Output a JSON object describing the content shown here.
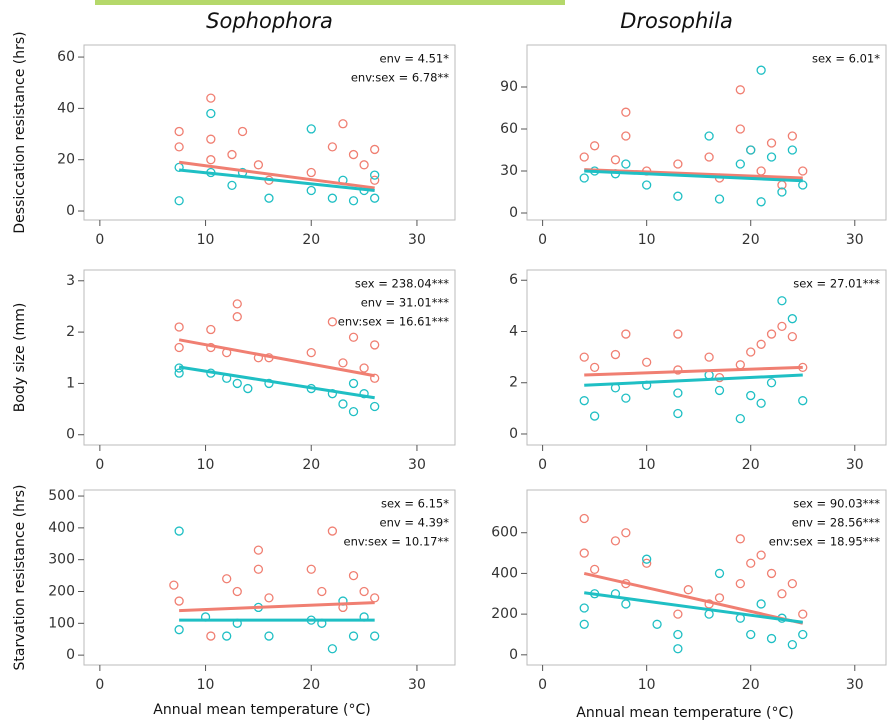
{
  "chart_data": [
    {
      "type": "scatter",
      "title": "Sophophora",
      "ylabel": "Dessiccation resistance (hrs)",
      "annotations": [
        "env = 4.51*",
        "env:sex = 6.78**"
      ],
      "xlim": [
        -1.5,
        33.6
      ],
      "xticks": [
        0,
        10,
        20,
        30
      ],
      "ylim": [
        -3.5,
        64.7
      ],
      "yticks": [
        0,
        20,
        40,
        60
      ],
      "series": [
        {
          "color": "#f07f72",
          "x": [
            7.5,
            7.5,
            10.5,
            10.5,
            10.5,
            12.5,
            13.5,
            15,
            16,
            20,
            22,
            23,
            24,
            25,
            26,
            26
          ],
          "y": [
            25,
            31,
            44,
            28,
            20,
            22,
            31,
            18,
            12,
            15,
            25,
            34,
            22,
            18,
            24,
            12
          ],
          "fit_x": [
            7.5,
            26
          ],
          "fit_y": [
            19,
            9
          ]
        },
        {
          "color": "#1fbfc4",
          "x": [
            7.5,
            7.5,
            10.5,
            10.5,
            12.5,
            13.5,
            16,
            20,
            20,
            22,
            23,
            24,
            25,
            26,
            26
          ],
          "y": [
            4,
            17,
            38,
            15,
            10,
            15,
            5,
            32,
            8,
            5,
            12,
            4,
            8,
            14,
            5
          ],
          "fit_x": [
            7.5,
            26
          ],
          "fit_y": [
            16,
            8
          ]
        }
      ]
    },
    {
      "type": "scatter",
      "title": "Drosophila",
      "annotations": [
        "sex = 6.01*"
      ],
      "xlim": [
        -1.5,
        33
      ],
      "xticks": [
        0,
        10,
        20,
        30
      ],
      "ylim": [
        -5,
        120
      ],
      "yticks": [
        0,
        30,
        60,
        90
      ],
      "series": [
        {
          "color": "#f07f72",
          "x": [
            4,
            5,
            7,
            8,
            8,
            10,
            13,
            16,
            17,
            19,
            19,
            20,
            21,
            22,
            23,
            24,
            25
          ],
          "y": [
            40,
            48,
            38,
            72,
            55,
            30,
            35,
            40,
            25,
            88,
            60,
            45,
            30,
            50,
            20,
            55,
            30
          ],
          "fit_x": [
            4,
            25
          ],
          "fit_y": [
            31,
            25
          ]
        },
        {
          "color": "#1fbfc4",
          "x": [
            4,
            5,
            7,
            8,
            10,
            13,
            16,
            17,
            19,
            20,
            21,
            21,
            22,
            23,
            24,
            25
          ],
          "y": [
            25,
            30,
            28,
            35,
            20,
            12,
            55,
            10,
            35,
            45,
            102,
            8,
            40,
            15,
            45,
            20
          ],
          "fit_x": [
            4,
            25
          ],
          "fit_y": [
            30,
            23
          ]
        }
      ]
    },
    {
      "type": "scatter",
      "ylabel": "Body size (mm)",
      "annotations": [
        "sex = 238.04***",
        "env = 31.01***",
        "env:sex = 16.61***"
      ],
      "xlim": [
        -1.5,
        33.6
      ],
      "xticks": [
        0,
        10,
        20,
        30
      ],
      "ylim": [
        -0.2,
        3.21
      ],
      "yticks": [
        0,
        1,
        2,
        3
      ],
      "series": [
        {
          "color": "#f07f72",
          "x": [
            7.5,
            7.5,
            10.5,
            10.5,
            12,
            13,
            13,
            15,
            16,
            20,
            22,
            23,
            24,
            25,
            26,
            26
          ],
          "y": [
            2.1,
            1.7,
            2.05,
            1.7,
            1.6,
            2.55,
            2.3,
            1.5,
            1.5,
            1.6,
            2.2,
            1.4,
            1.9,
            1.3,
            1.75,
            1.1
          ],
          "fit_x": [
            7.5,
            26
          ],
          "fit_y": [
            1.85,
            1.15
          ]
        },
        {
          "color": "#1fbfc4",
          "x": [
            7.5,
            7.5,
            10.5,
            12,
            13,
            14,
            16,
            20,
            22,
            23,
            24,
            24,
            25,
            26
          ],
          "y": [
            1.3,
            1.2,
            1.2,
            1.1,
            1.0,
            0.9,
            1.0,
            0.9,
            0.8,
            0.6,
            0.45,
            1.0,
            0.8,
            0.55
          ],
          "fit_x": [
            7.5,
            26
          ],
          "fit_y": [
            1.32,
            0.72
          ]
        }
      ]
    },
    {
      "type": "scatter",
      "annotations": [
        "sex = 27.01***"
      ],
      "xlim": [
        -1.5,
        33
      ],
      "xticks": [
        0,
        10,
        20,
        30
      ],
      "ylim": [
        -0.43,
        6.4
      ],
      "yticks": [
        0,
        2,
        4,
        6
      ],
      "series": [
        {
          "color": "#f07f72",
          "x": [
            4,
            5,
            7,
            8,
            10,
            13,
            13,
            16,
            17,
            19,
            20,
            21,
            22,
            23,
            24,
            25
          ],
          "y": [
            3.0,
            2.6,
            3.1,
            3.9,
            2.8,
            3.9,
            2.5,
            3.0,
            2.2,
            2.7,
            3.2,
            3.5,
            3.9,
            4.2,
            3.8,
            2.6
          ],
          "fit_x": [
            4,
            25
          ],
          "fit_y": [
            2.3,
            2.6
          ]
        },
        {
          "color": "#1fbfc4",
          "x": [
            4,
            5,
            7,
            8,
            10,
            13,
            13,
            16,
            17,
            19,
            20,
            21,
            22,
            23,
            24,
            25
          ],
          "y": [
            1.3,
            0.7,
            1.8,
            1.4,
            1.9,
            0.8,
            1.6,
            2.3,
            1.7,
            0.6,
            1.5,
            1.2,
            2.0,
            5.2,
            4.5,
            1.3
          ],
          "fit_x": [
            4,
            25
          ],
          "fit_y": [
            1.9,
            2.3
          ]
        }
      ]
    },
    {
      "type": "scatter",
      "ylabel": "Starvation resistance (hrs)",
      "xlabel": "Annual mean temperature (°C)",
      "annotations": [
        "sex = 6.15*",
        "env = 4.39*",
        "env:sex = 10.17**"
      ],
      "xlim": [
        -1.5,
        33.6
      ],
      "xticks": [
        0,
        10,
        20,
        30
      ],
      "ylim": [
        -31,
        519
      ],
      "yticks": [
        0,
        100,
        200,
        300,
        400,
        500
      ],
      "series": [
        {
          "color": "#f07f72",
          "x": [
            7,
            7.5,
            10.5,
            12,
            13,
            15,
            15,
            16,
            20,
            21,
            22,
            23,
            24,
            25,
            26
          ],
          "y": [
            220,
            170,
            60,
            240,
            200,
            330,
            270,
            180,
            270,
            200,
            390,
            150,
            250,
            200,
            180
          ],
          "fit_x": [
            7.5,
            26
          ],
          "fit_y": [
            140,
            165
          ]
        },
        {
          "color": "#1fbfc4",
          "x": [
            7.5,
            7.5,
            10,
            12,
            13,
            15,
            16,
            20,
            21,
            22,
            23,
            24,
            25,
            26
          ],
          "y": [
            390,
            80,
            120,
            60,
            100,
            150,
            60,
            110,
            100,
            20,
            170,
            60,
            120,
            60
          ],
          "fit_x": [
            7.5,
            26
          ],
          "fit_y": [
            110,
            110
          ]
        }
      ]
    },
    {
      "type": "scatter",
      "xlabel": "Annual mean temperature (°C)",
      "annotations": [
        "sex = 90.03***",
        "env = 28.56***",
        "env:sex = 18.95***"
      ],
      "xlim": [
        -1.5,
        33
      ],
      "xticks": [
        0,
        10,
        20,
        30
      ],
      "ylim": [
        -50,
        810
      ],
      "yticks": [
        0,
        200,
        400,
        600
      ],
      "series": [
        {
          "color": "#f07f72",
          "x": [
            4,
            4,
            5,
            7,
            8,
            8,
            10,
            13,
            14,
            16,
            17,
            19,
            19,
            20,
            21,
            22,
            23,
            24,
            25
          ],
          "y": [
            670,
            500,
            420,
            560,
            600,
            350,
            450,
            200,
            320,
            250,
            280,
            570,
            350,
            450,
            490,
            400,
            300,
            350,
            200
          ],
          "fit_x": [
            4,
            25
          ],
          "fit_y": [
            400,
            155
          ]
        },
        {
          "color": "#1fbfc4",
          "x": [
            4,
            4,
            5,
            7,
            8,
            10,
            11,
            13,
            13,
            16,
            17,
            19,
            20,
            21,
            22,
            23,
            24,
            25
          ],
          "y": [
            230,
            150,
            300,
            300,
            250,
            470,
            150,
            30,
            100,
            200,
            400,
            180,
            100,
            250,
            80,
            180,
            50,
            100
          ],
          "fit_x": [
            4,
            25
          ],
          "fit_y": [
            305,
            160
          ]
        }
      ]
    }
  ]
}
